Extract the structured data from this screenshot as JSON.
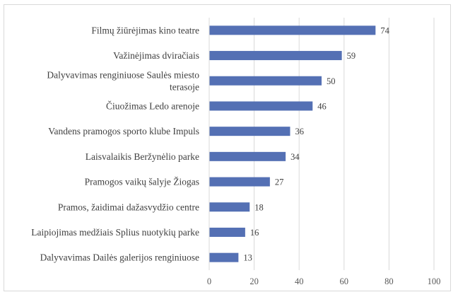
{
  "chart_data": {
    "type": "bar",
    "orientation": "horizontal",
    "categories": [
      [
        "Filmų žiūrėjimas kino teatre"
      ],
      [
        "Važinėjimas dviračiais"
      ],
      [
        "Dalyvavimas renginiuose Saulės miesto",
        "terasoje"
      ],
      [
        "Čiuožimas Ledo arenoje"
      ],
      [
        "Vandens pramogos sporto klube Impuls"
      ],
      [
        "Laisvalaikis Beržynėlio parke"
      ],
      [
        "Pramogos vaikų šalyje Žiogas"
      ],
      [
        "Pramos, žaidimai dažasvydžio centre"
      ],
      [
        "Laipiojimas medžiais Splius nuotykių parke"
      ],
      [
        "Dalyvavimas Dailės galerijos renginiuose"
      ]
    ],
    "values": [
      74,
      59,
      50,
      46,
      36,
      34,
      27,
      18,
      16,
      13
    ],
    "xlim": [
      0,
      100
    ],
    "xticks": [
      0,
      20,
      40,
      60,
      80,
      100
    ],
    "bar_color": "#5470b4",
    "grid_color": "#d9d9d9",
    "grid": true,
    "title": "",
    "xlabel": "",
    "ylabel": ""
  }
}
